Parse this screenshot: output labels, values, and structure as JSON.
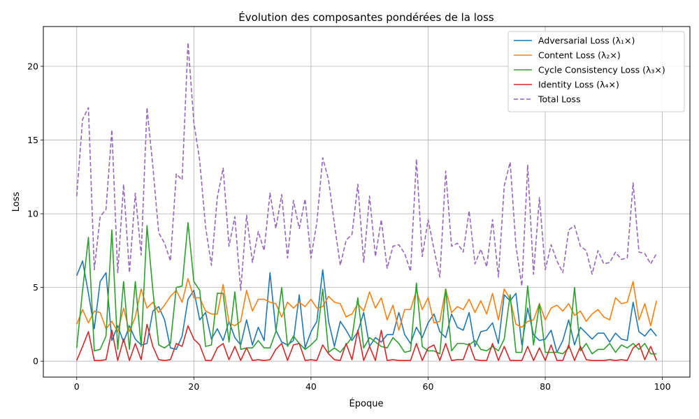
{
  "chart_data": {
    "type": "line",
    "title": "Évolution des composantes pondérées de la loss",
    "xlabel": "Époque",
    "ylabel": "Loss",
    "xlim": [
      -5.7,
      104.7
    ],
    "ylim": [
      -1.08,
      22.7
    ],
    "xticks": [
      0,
      20,
      40,
      60,
      80,
      100
    ],
    "yticks": [
      0,
      5,
      10,
      15,
      20
    ],
    "grid": true,
    "legend_position": "top-right",
    "x": [
      0,
      1,
      2,
      3,
      4,
      5,
      6,
      7,
      8,
      9,
      10,
      11,
      12,
      13,
      14,
      15,
      16,
      17,
      18,
      19,
      20,
      21,
      22,
      23,
      24,
      25,
      26,
      27,
      28,
      29,
      30,
      31,
      32,
      33,
      34,
      35,
      36,
      37,
      38,
      39,
      40,
      41,
      42,
      43,
      44,
      45,
      46,
      47,
      48,
      49,
      50,
      51,
      52,
      53,
      54,
      55,
      56,
      57,
      58,
      59,
      60,
      61,
      62,
      63,
      64,
      65,
      66,
      67,
      68,
      69,
      70,
      71,
      72,
      73,
      74,
      75,
      76,
      77,
      78,
      79,
      80,
      81,
      82,
      83,
      84,
      85,
      86,
      87,
      88,
      89,
      90,
      91,
      92,
      93,
      94,
      95,
      96,
      97,
      98,
      99
    ],
    "series": [
      {
        "name": "Adversarial Loss (λ₁×)",
        "color": "#1f77b4",
        "dash": "solid",
        "values": [
          5.8,
          6.8,
          4.6,
          2.2,
          5.4,
          6.0,
          1.4,
          2.4,
          1.3,
          2.4,
          1.5,
          1.1,
          1.2,
          3.4,
          3.7,
          2.8,
          0.9,
          0.8,
          1.7,
          4.2,
          4.8,
          2.8,
          3.3,
          1.5,
          2.2,
          1.4,
          2.7,
          1.6,
          1.1,
          2.8,
          1.1,
          2.3,
          1.4,
          6.0,
          2.1,
          1.3,
          1.1,
          1.4,
          4.5,
          0.9,
          2.0,
          2.7,
          6.2,
          2.7,
          1.0,
          2.7,
          2.1,
          1.4,
          2.0,
          3.3,
          1.0,
          1.6,
          1.3,
          1.8,
          1.8,
          3.3,
          1.8,
          1.2,
          2.3,
          1.6,
          2.6,
          3.2,
          2.0,
          1.6,
          3.2,
          2.3,
          2.1,
          3.3,
          1.0,
          2.0,
          2.1,
          2.6,
          1.2,
          4.5,
          4.1,
          4.6,
          1.1,
          3.6,
          1.8,
          1.4,
          1.5,
          2.1,
          0.6,
          1.4,
          2.8,
          1.1,
          2.3,
          1.9,
          1.5,
          1.9,
          1.9,
          1.3,
          1.9,
          1.5,
          1.4,
          4.0,
          2.0,
          1.7,
          2.2,
          1.7
        ]
      },
      {
        "name": "Content Loss (λ₂×)",
        "color": "#ff7f0e",
        "dash": "solid",
        "values": [
          2.5,
          3.5,
          2.6,
          3.4,
          3.3,
          2.2,
          2.7,
          2.0,
          3.6,
          2.0,
          3.0,
          4.9,
          3.6,
          4.0,
          3.3,
          3.8,
          4.4,
          4.8,
          4.0,
          5.6,
          4.3,
          4.3,
          3.4,
          3.2,
          3.2,
          5.2,
          2.6,
          2.4,
          2.7,
          4.8,
          3.4,
          4.2,
          4.2,
          4.0,
          3.9,
          3.0,
          4.0,
          3.6,
          4.0,
          3.7,
          4.2,
          3.6,
          3.7,
          4.4,
          4.0,
          3.9,
          3.0,
          3.2,
          3.9,
          3.4,
          4.7,
          3.6,
          4.3,
          2.8,
          3.8,
          2.1,
          3.5,
          3.5,
          4.8,
          3.5,
          4.3,
          2.6,
          2.7,
          4.9,
          3.3,
          3.7,
          3.5,
          4.2,
          3.3,
          4.1,
          3.2,
          4.6,
          2.8,
          4.9,
          4.2,
          2.5,
          2.3,
          2.7,
          2.8,
          3.9,
          2.8,
          3.6,
          3.8,
          3.4,
          3.9,
          3.1,
          3.4,
          2.7,
          3.2,
          3.5,
          3.0,
          2.8,
          4.3,
          3.9,
          4.0,
          5.4,
          2.8,
          3.9,
          2.4,
          4.1
        ]
      },
      {
        "name": "Cycle Consistency Loss (λ₃×)",
        "color": "#2ca02c",
        "dash": "solid",
        "values": [
          0.9,
          4.8,
          8.4,
          0.7,
          0.8,
          1.7,
          8.9,
          0.8,
          5.4,
          0.8,
          5.4,
          1.0,
          9.2,
          4.8,
          1.1,
          0.9,
          1.2,
          5.0,
          5.1,
          9.4,
          5.4,
          4.8,
          1.0,
          1.1,
          4.6,
          4.6,
          1.3,
          4.7,
          0.8,
          0.9,
          0.9,
          1.4,
          0.9,
          0.9,
          2.0,
          5.0,
          1.0,
          1.7,
          1.2,
          0.8,
          1.1,
          1.5,
          4.9,
          0.6,
          0.9,
          0.6,
          1.1,
          1.6,
          4.3,
          0.9,
          1.6,
          1.3,
          1.0,
          0.9,
          1.6,
          1.2,
          0.6,
          0.7,
          5.3,
          1.0,
          0.7,
          0.7,
          0.5,
          4.9,
          0.7,
          1.2,
          1.2,
          1.1,
          1.4,
          0.8,
          0.7,
          1.0,
          0.7,
          1.5,
          4.5,
          0.6,
          0.6,
          5.1,
          1.1,
          3.9,
          0.6,
          0.6,
          0.6,
          0.5,
          0.9,
          5.0,
          0.7,
          1.2,
          0.5,
          0.8,
          0.8,
          1.2,
          0.6,
          1.1,
          0.9,
          1.2,
          0.8,
          1.2,
          0.5,
          0.5
        ]
      },
      {
        "name": "Identity Loss (λ₄×)",
        "color": "#d62728",
        "dash": "solid",
        "values": [
          0.05,
          1.0,
          2.0,
          0.05,
          0.05,
          0.1,
          2.1,
          0.05,
          1.5,
          0.05,
          1.2,
          0.1,
          2.5,
          1.0,
          0.1,
          0.05,
          0.1,
          1.2,
          1.0,
          2.4,
          1.5,
          1.1,
          0.05,
          0.05,
          0.9,
          1.2,
          0.1,
          1.0,
          0.05,
          0.9,
          0.05,
          0.1,
          0.05,
          0.1,
          0.8,
          1.2,
          0.05,
          1.1,
          1.2,
          0.05,
          0.1,
          0.05,
          1.1,
          0.5,
          0.1,
          0.05,
          1.2,
          0.1,
          2.1,
          0.05,
          1.0,
          0.05,
          2.1,
          0.05,
          0.1,
          0.05,
          0.05,
          0.05,
          1.2,
          0.05,
          0.9,
          1.1,
          0.05,
          1.2,
          0.05,
          0.1,
          0.1,
          1.2,
          0.1,
          0.05,
          0.05,
          1.2,
          0.05,
          1.0,
          0.05,
          0.05,
          0.05,
          1.0,
          0.05,
          0.9,
          0.05,
          1.1,
          0.05,
          0.05,
          1.1,
          0.05,
          1.0,
          0.1,
          0.05,
          0.05,
          0.05,
          0.1,
          0.05,
          0.1,
          0.05,
          0.9,
          1.2,
          0.1,
          1.0,
          0.05
        ]
      },
      {
        "name": "Total Loss",
        "color": "#9467bd",
        "dash": "dashed",
        "values": [
          11.2,
          16.4,
          17.2,
          6.2,
          9.8,
          10.3,
          15.7,
          6.0,
          12.0,
          6.0,
          11.4,
          7.2,
          17.2,
          13.2,
          8.7,
          8.0,
          6.8,
          12.7,
          12.3,
          21.6,
          16.2,
          13.6,
          9.1,
          6.5,
          11.1,
          13.1,
          7.8,
          9.8,
          4.8,
          9.9,
          6.7,
          8.8,
          7.5,
          11.4,
          9.0,
          11.3,
          7.0,
          10.9,
          9.0,
          11.0,
          7.0,
          9.4,
          13.8,
          12.3,
          9.3,
          6.5,
          8.2,
          8.6,
          12.0,
          6.7,
          11.2,
          7.1,
          9.6,
          6.3,
          7.8,
          7.9,
          7.3,
          6.1,
          13.7,
          7.1,
          9.6,
          7.6,
          5.7,
          12.9,
          7.8,
          8.0,
          7.4,
          10.2,
          6.6,
          7.6,
          6.4,
          9.6,
          5.7,
          11.9,
          13.5,
          7.8,
          5.1,
          13.3,
          5.9,
          11.1,
          6.2,
          7.9,
          6.8,
          6.0,
          8.9,
          9.2,
          7.8,
          7.5,
          5.9,
          7.5,
          6.6,
          6.7,
          7.4,
          6.9,
          7.0,
          12.1,
          7.4,
          7.3,
          6.6,
          7.3
        ]
      }
    ]
  }
}
